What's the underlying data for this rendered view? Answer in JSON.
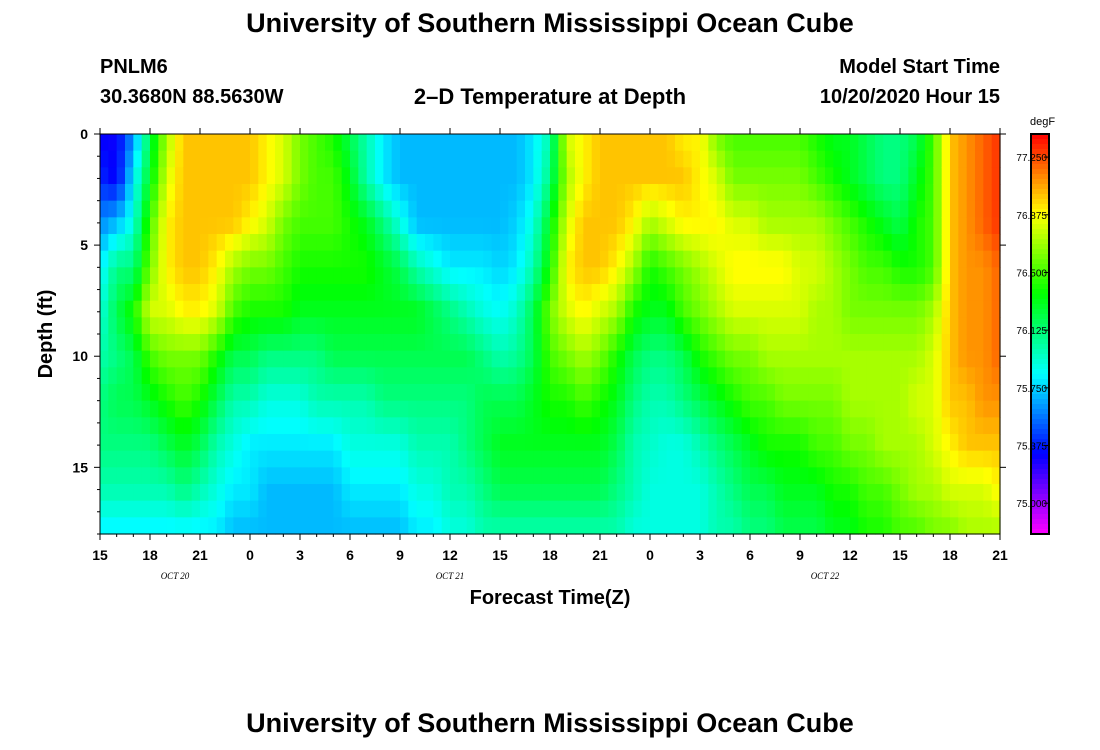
{
  "page": {
    "title_top": "University of Southern Mississippi Ocean Cube",
    "title_bottom": "University of Southern Mississippi Ocean Cube",
    "station_id": "PNLM6",
    "station_coords": "30.3680N 88.5630W",
    "model_start_label": "Model Start Time",
    "model_start_value": "10/20/2020 Hour 15"
  },
  "chart_data": {
    "type": "heatmap",
    "title": "2–D Temperature at Depth",
    "xlabel": "Forecast Time(Z)",
    "ylabel": "Depth (ft)",
    "units": "degF",
    "x_range_hours": [
      0,
      54
    ],
    "x_ticks": [
      {
        "hour": 0,
        "label": "15"
      },
      {
        "hour": 3,
        "label": "18"
      },
      {
        "hour": 6,
        "label": "21"
      },
      {
        "hour": 9,
        "label": "0"
      },
      {
        "hour": 12,
        "label": "3"
      },
      {
        "hour": 15,
        "label": "6"
      },
      {
        "hour": 18,
        "label": "9"
      },
      {
        "hour": 21,
        "label": "12"
      },
      {
        "hour": 24,
        "label": "15"
      },
      {
        "hour": 27,
        "label": "18"
      },
      {
        "hour": 30,
        "label": "21"
      },
      {
        "hour": 33,
        "label": "0"
      },
      {
        "hour": 36,
        "label": "3"
      },
      {
        "hour": 39,
        "label": "6"
      },
      {
        "hour": 42,
        "label": "9"
      },
      {
        "hour": 45,
        "label": "12"
      },
      {
        "hour": 48,
        "label": "15"
      },
      {
        "hour": 51,
        "label": "18"
      },
      {
        "hour": 54,
        "label": "21"
      }
    ],
    "date_labels": [
      {
        "hour": 4.5,
        "label": "OCT  20"
      },
      {
        "hour": 21,
        "label": "OCT  21"
      },
      {
        "hour": 43.5,
        "label": "OCT  22"
      }
    ],
    "y_range_ft": [
      0,
      18
    ],
    "y_ticks": [
      {
        "depth": 0,
        "label": "0"
      },
      {
        "depth": 5,
        "label": "5"
      },
      {
        "depth": 10,
        "label": "10"
      },
      {
        "depth": 15,
        "label": "15"
      }
    ],
    "colorbar": {
      "unit": "degF",
      "range": [
        74.8,
        77.4
      ],
      "tick_values": [
        {
          "value": 77.25,
          "label": "77.250"
        },
        {
          "value": 76.875,
          "label": "76.875"
        },
        {
          "value": 76.5,
          "label": "76.500"
        },
        {
          "value": 76.125,
          "label": "76.125"
        },
        {
          "value": 75.75,
          "label": "75.750"
        },
        {
          "value": 75.375,
          "label": "75.375"
        },
        {
          "value": 75.0,
          "label": "75.000"
        }
      ]
    },
    "grid": {
      "times": [
        0,
        1,
        2,
        3,
        4,
        5,
        6,
        7,
        8,
        9,
        10,
        11,
        12,
        13,
        14,
        15,
        16,
        17,
        18,
        19,
        20,
        21,
        22,
        23,
        24,
        25,
        26,
        27,
        28,
        29,
        30,
        31,
        32,
        33,
        34,
        35,
        36,
        37,
        38,
        39,
        40,
        41,
        42,
        43,
        44,
        45,
        46,
        47,
        48,
        49,
        50,
        51,
        52,
        53,
        54
      ],
      "depths": [
        0,
        2,
        4,
        6,
        8,
        10,
        12,
        14,
        16,
        18
      ],
      "temperature_profile": [
        [
          75.3,
          75.4,
          75.6,
          75.8,
          75.9,
          76.0,
          76.1,
          76.1,
          76.0,
          75.8
        ],
        [
          75.3,
          75.3,
          75.7,
          76.1,
          76.2,
          76.1,
          76.2,
          76.1,
          76.0,
          75.8
        ],
        [
          75.6,
          75.8,
          75.9,
          76.1,
          76.4,
          76.2,
          76.2,
          76.1,
          76.0,
          75.8
        ],
        [
          76.2,
          76.3,
          76.5,
          76.6,
          76.8,
          76.5,
          76.3,
          76.1,
          76.0,
          75.8
        ],
        [
          76.7,
          76.8,
          76.9,
          76.9,
          76.8,
          76.6,
          76.4,
          76.2,
          76.0,
          75.8
        ],
        [
          77.0,
          77.0,
          77.0,
          77.0,
          76.9,
          76.6,
          76.5,
          76.3,
          76.1,
          75.8
        ],
        [
          77.0,
          77.0,
          77.0,
          77.0,
          76.9,
          76.6,
          76.4,
          76.2,
          76.0,
          75.8
        ],
        [
          77.0,
          77.0,
          77.0,
          76.9,
          76.8,
          76.4,
          76.2,
          76.0,
          75.9,
          75.8
        ],
        [
          77.0,
          77.0,
          77.0,
          76.7,
          76.5,
          76.2,
          76.0,
          75.9,
          75.8,
          75.7
        ],
        [
          77.0,
          77.0,
          76.9,
          76.6,
          76.4,
          76.2,
          76.0,
          75.8,
          75.8,
          75.7
        ],
        [
          76.9,
          76.9,
          76.8,
          76.6,
          76.4,
          76.1,
          75.9,
          75.8,
          75.7,
          75.7
        ],
        [
          76.8,
          76.8,
          76.6,
          76.5,
          76.4,
          76.1,
          75.9,
          75.8,
          75.7,
          75.7
        ],
        [
          76.6,
          76.6,
          76.5,
          76.4,
          76.3,
          76.1,
          75.9,
          75.8,
          75.7,
          75.7
        ],
        [
          76.5,
          76.5,
          76.5,
          76.4,
          76.3,
          76.1,
          76.0,
          75.8,
          75.7,
          75.7
        ],
        [
          76.4,
          76.5,
          76.5,
          76.4,
          76.3,
          76.2,
          76.0,
          75.8,
          75.7,
          75.7
        ],
        [
          76.2,
          76.3,
          76.4,
          76.4,
          76.3,
          76.2,
          76.0,
          75.9,
          75.8,
          75.7
        ],
        [
          76.0,
          76.0,
          76.3,
          76.4,
          76.3,
          76.2,
          76.0,
          75.9,
          75.8,
          75.7
        ],
        [
          75.8,
          75.8,
          76.1,
          76.3,
          76.3,
          76.2,
          76.1,
          75.9,
          75.8,
          75.7
        ],
        [
          75.7,
          75.7,
          75.9,
          76.2,
          76.3,
          76.2,
          76.1,
          75.9,
          75.8,
          75.7
        ],
        [
          75.7,
          75.7,
          75.7,
          76.0,
          76.3,
          76.2,
          76.1,
          76.0,
          75.9,
          75.8
        ],
        [
          75.7,
          75.7,
          75.7,
          75.9,
          76.2,
          76.2,
          76.1,
          76.0,
          75.9,
          75.8
        ],
        [
          75.7,
          75.7,
          75.7,
          75.8,
          76.1,
          76.2,
          76.1,
          76.0,
          76.0,
          75.9
        ],
        [
          75.7,
          75.7,
          75.7,
          75.8,
          76.0,
          76.2,
          76.1,
          76.1,
          76.0,
          75.9
        ],
        [
          75.7,
          75.7,
          75.7,
          75.8,
          75.9,
          76.1,
          76.2,
          76.2,
          76.1,
          76.0
        ],
        [
          75.7,
          75.7,
          75.7,
          75.75,
          75.85,
          76.0,
          76.2,
          76.3,
          76.2,
          76.0
        ],
        [
          75.7,
          75.7,
          75.75,
          75.8,
          75.95,
          76.05,
          76.2,
          76.3,
          76.2,
          76.0
        ],
        [
          75.8,
          75.8,
          75.9,
          76.0,
          76.2,
          76.2,
          76.3,
          76.3,
          76.2,
          76.0
        ],
        [
          76.0,
          76.1,
          76.3,
          76.4,
          76.6,
          76.5,
          76.4,
          76.3,
          76.2,
          76.0
        ],
        [
          76.8,
          76.7,
          76.8,
          76.9,
          76.8,
          76.6,
          76.4,
          76.3,
          76.2,
          76.0
        ],
        [
          76.9,
          76.9,
          77.0,
          77.0,
          76.9,
          76.7,
          76.5,
          76.3,
          76.2,
          76.0
        ],
        [
          77.0,
          77.0,
          77.0,
          77.0,
          76.8,
          76.6,
          76.4,
          76.3,
          76.2,
          76.0
        ],
        [
          77.0,
          77.0,
          77.0,
          76.9,
          76.7,
          76.4,
          76.3,
          76.2,
          76.1,
          76.0
        ],
        [
          77.0,
          77.0,
          76.9,
          76.7,
          76.4,
          76.2,
          76.1,
          76.0,
          76.0,
          75.9
        ],
        [
          77.0,
          77.0,
          76.7,
          76.4,
          76.3,
          76.1,
          76.0,
          75.95,
          75.9,
          75.9
        ],
        [
          77.0,
          77.0,
          76.8,
          76.5,
          76.3,
          76.1,
          76.0,
          75.9,
          75.9,
          75.9
        ],
        [
          76.9,
          77.0,
          76.9,
          76.6,
          76.5,
          76.2,
          76.1,
          75.9,
          75.9,
          75.9
        ],
        [
          76.9,
          76.9,
          76.9,
          76.7,
          76.6,
          76.4,
          76.2,
          76.0,
          75.9,
          75.9
        ],
        [
          76.6,
          76.8,
          76.9,
          76.8,
          76.7,
          76.5,
          76.3,
          76.1,
          76.0,
          76.0
        ],
        [
          76.5,
          76.6,
          76.8,
          76.9,
          76.8,
          76.6,
          76.4,
          76.2,
          76.1,
          76.0
        ],
        [
          76.5,
          76.6,
          76.8,
          76.9,
          76.8,
          76.6,
          76.5,
          76.3,
          76.2,
          76.1
        ],
        [
          76.5,
          76.6,
          76.7,
          76.9,
          76.8,
          76.7,
          76.5,
          76.4,
          76.2,
          76.1
        ],
        [
          76.5,
          76.6,
          76.7,
          76.9,
          76.8,
          76.7,
          76.6,
          76.4,
          76.3,
          76.2
        ],
        [
          76.5,
          76.6,
          76.7,
          76.8,
          76.8,
          76.7,
          76.6,
          76.4,
          76.3,
          76.2
        ],
        [
          76.4,
          76.5,
          76.7,
          76.8,
          76.7,
          76.7,
          76.6,
          76.5,
          76.3,
          76.2
        ],
        [
          76.3,
          76.4,
          76.6,
          76.7,
          76.7,
          76.7,
          76.6,
          76.5,
          76.4,
          76.3
        ],
        [
          76.3,
          76.3,
          76.5,
          76.6,
          76.6,
          76.7,
          76.7,
          76.6,
          76.4,
          76.3
        ],
        [
          76.2,
          76.2,
          76.4,
          76.5,
          76.6,
          76.7,
          76.7,
          76.6,
          76.5,
          76.4
        ],
        [
          76.1,
          76.1,
          76.3,
          76.5,
          76.6,
          76.7,
          76.7,
          76.7,
          76.5,
          76.4
        ],
        [
          76.1,
          76.1,
          76.2,
          76.4,
          76.6,
          76.7,
          76.7,
          76.7,
          76.6,
          76.5
        ],
        [
          76.2,
          76.3,
          76.4,
          76.4,
          76.6,
          76.7,
          76.8,
          76.7,
          76.7,
          76.5
        ],
        [
          76.5,
          76.5,
          76.5,
          76.5,
          76.7,
          76.8,
          76.8,
          76.8,
          76.7,
          76.6
        ],
        [
          77.0,
          77.0,
          77.0,
          77.0,
          77.0,
          77.0,
          77.0,
          76.9,
          76.8,
          76.6
        ],
        [
          77.1,
          77.1,
          77.1,
          77.1,
          77.1,
          77.1,
          77.0,
          77.0,
          76.8,
          76.7
        ],
        [
          77.2,
          77.2,
          77.2,
          77.1,
          77.1,
          77.1,
          77.1,
          77.0,
          76.8,
          76.7
        ],
        [
          77.3,
          77.3,
          77.3,
          77.2,
          77.2,
          77.2,
          77.1,
          77.0,
          76.9,
          76.7
        ]
      ]
    }
  }
}
